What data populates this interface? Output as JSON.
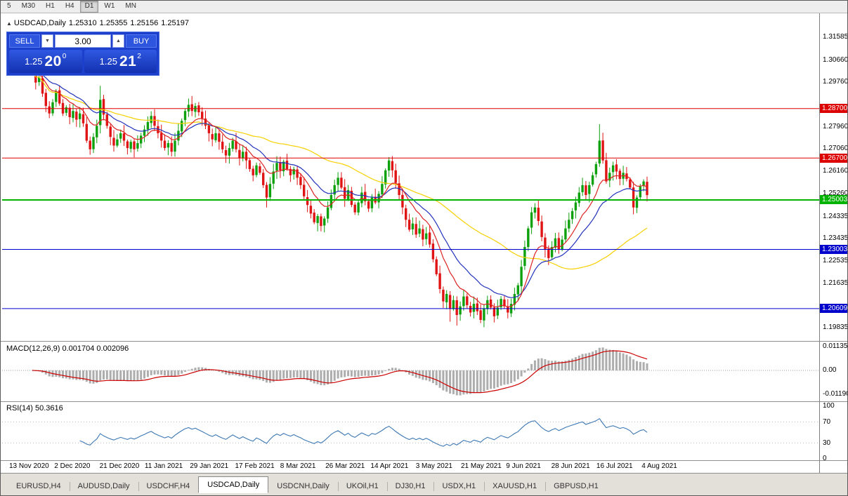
{
  "toolbar": {
    "timeframes": [
      "5",
      "M30",
      "H1",
      "H4",
      "D1",
      "W1",
      "MN"
    ],
    "active": "D1"
  },
  "icons": {
    "collapse": "▲",
    "spin_down": "▼",
    "spin_up": "▲"
  },
  "chart_header": {
    "symbol": "USDCAD,Daily",
    "open": "1.25310",
    "high": "1.25355",
    "low": "1.25156",
    "close": "1.25197"
  },
  "trade_panel": {
    "sell_label": "SELL",
    "buy_label": "BUY",
    "lot_value": "3.00",
    "sell_price_main": "1.25",
    "sell_price_pips": "20",
    "sell_price_sup": "0",
    "buy_price_main": "1.25",
    "buy_price_pips": "21",
    "buy_price_sup": "2"
  },
  "indicators": {
    "macd": {
      "header": "MACD(12,26,9) 0.001704 0.002096",
      "axis": [
        "0.01135",
        "0.00",
        "-0.01190"
      ],
      "fast": 12,
      "slow": 26,
      "signal": 9,
      "histogram_color": "#adadad",
      "signal_color": "#cc0000"
    },
    "rsi": {
      "header": "RSI(14) 50.3616",
      "axis": [
        "100",
        "70",
        "30",
        "0"
      ],
      "period": 14,
      "levels": [
        70,
        30
      ],
      "line_color": "#3c78b4"
    }
  },
  "price_axis": {
    "ticks": [
      {
        "label": "1.31585",
        "price": 1.31585
      },
      {
        "label": "1.30660",
        "price": 1.3066
      },
      {
        "label": "1.29760",
        "price": 1.2976
      },
      {
        "label": "1.27960",
        "price": 1.2796
      },
      {
        "label": "1.27060",
        "price": 1.2706
      },
      {
        "label": "1.26160",
        "price": 1.2616
      },
      {
        "label": "1.25260",
        "price": 1.2526
      },
      {
        "label": "1.24335",
        "price": 1.24335
      },
      {
        "label": "1.23435",
        "price": 1.23435
      },
      {
        "label": "1.22535",
        "price": 1.22535
      },
      {
        "label": "1.21635",
        "price": 1.21635
      },
      {
        "label": "1.19835",
        "price": 1.19835
      }
    ]
  },
  "date_axis": {
    "labels": [
      "13 Nov 2020",
      "2 Dec 2020",
      "21 Dec 2020",
      "11 Jan 2021",
      "29 Jan 2021",
      "17 Feb 2021",
      "8 Mar 2021",
      "26 Mar 2021",
      "14 Apr 2021",
      "3 May 2021",
      "21 May 2021",
      "9 Jun 2021",
      "28 Jun 2021",
      "16 Jul 2021",
      "4 Aug 2021"
    ]
  },
  "tabs": {
    "items": [
      "EURUSD,H4",
      "AUDUSD,Daily",
      "USDCHF,H4",
      "USDCAD,Daily",
      "USDCNH,Daily",
      "UKOil,H1",
      "DJ30,H1",
      "USDX,H1",
      "XAUUSD,H1",
      "GBPUSD,H1"
    ],
    "active": "USDCAD,Daily"
  },
  "chart_data": {
    "type": "candlestick",
    "symbol": "USDCAD",
    "timeframe": "Daily",
    "view": {
      "price_min": 1.193,
      "price_max": 1.3235
    },
    "up_color": "#0ea10e",
    "down_color": "#e01414",
    "closes": [
      1.302,
      1.2975,
      1.2995,
      1.293,
      1.288,
      1.285,
      1.2895,
      1.294,
      1.289,
      1.285,
      1.2875,
      1.2835,
      1.286,
      1.2825,
      1.285,
      1.281,
      1.274,
      1.2705,
      1.2755,
      1.28,
      1.2905,
      1.2845,
      1.28,
      1.2755,
      1.272,
      1.2745,
      1.277,
      1.274,
      1.271,
      1.2735,
      1.2705,
      1.273,
      1.276,
      1.2785,
      1.2815,
      1.284,
      1.28,
      1.277,
      1.274,
      1.271,
      1.273,
      1.2695,
      1.274,
      1.278,
      1.282,
      1.286,
      1.2885,
      1.286,
      1.288,
      1.2855,
      1.283,
      1.28,
      1.277,
      1.2745,
      1.277,
      1.2735,
      1.2705,
      1.268,
      1.271,
      1.274,
      1.2705,
      1.267,
      1.2695,
      1.266,
      1.2625,
      1.26,
      1.264,
      1.261,
      1.256,
      1.251,
      1.2565,
      1.2615,
      1.265,
      1.262,
      1.2655,
      1.2625,
      1.26,
      1.2625,
      1.259,
      1.256,
      1.2515,
      1.248,
      1.2445,
      1.241,
      1.2435,
      1.2395,
      1.2425,
      1.247,
      1.252,
      1.256,
      1.259,
      1.255,
      1.2505,
      1.254,
      1.248,
      1.245,
      1.249,
      1.253,
      1.2495,
      1.2465,
      1.251,
      1.249,
      1.2525,
      1.2565,
      1.262,
      1.266,
      1.262,
      1.257,
      1.252,
      1.247,
      1.242,
      1.238,
      1.2405,
      1.236,
      1.2385,
      1.234,
      1.2365,
      1.232,
      1.226,
      1.22,
      1.214,
      1.209,
      1.212,
      1.206,
      1.2095,
      1.2035,
      1.207,
      1.211,
      1.2075,
      1.2045,
      1.208,
      1.205,
      1.2015,
      1.206,
      1.2095,
      1.2065,
      1.203,
      1.2065,
      1.21,
      1.207,
      1.2045,
      1.208,
      1.212,
      1.2155,
      1.223,
      1.231,
      1.2385,
      1.245,
      1.247,
      1.2415,
      1.235,
      1.23,
      1.2265,
      1.231,
      1.2345,
      1.23,
      1.234,
      1.2385,
      1.242,
      1.2455,
      1.249,
      1.253,
      1.256,
      1.252,
      1.256,
      1.26,
      1.2645,
      1.274,
      1.266,
      1.2575,
      1.261,
      1.264,
      1.2615,
      1.2585,
      1.261,
      1.2585,
      1.255,
      1.247,
      1.251,
      1.2555,
      1.2575,
      1.252
    ],
    "wick_overrides": {
      "0": {
        "high": 1.3045
      },
      "20": {
        "high": 1.2962
      },
      "69": {
        "low": 1.247
      },
      "123": {
        "low": 1.2008
      },
      "125": {
        "low": 1.1992
      },
      "132": {
        "low": 1.2002
      },
      "136": {
        "low": 1.2005
      },
      "167": {
        "high": 1.2807
      }
    },
    "moving_averages": [
      {
        "type": "sma",
        "period": 50,
        "color": "#f7d000"
      },
      {
        "type": "ema",
        "period": 20,
        "color": "#2233bb"
      },
      {
        "type": "ema",
        "period": 10,
        "color": "#dd2222"
      }
    ],
    "levels": [
      {
        "label": "1.28700",
        "price": 1.287,
        "color": "#dd0000",
        "width": 1
      },
      {
        "label": "1.26700",
        "price": 1.267,
        "color": "#dd0000",
        "width": 1
      },
      {
        "label": "1.25003",
        "price": 1.25003,
        "color": "#00b300",
        "width": 2
      },
      {
        "label": "1.23003",
        "price": 1.23003,
        "color": "#0000cc",
        "width": 1
      },
      {
        "label": "1.20609",
        "price": 1.20609,
        "color": "#0000cc",
        "width": 1
      }
    ]
  }
}
